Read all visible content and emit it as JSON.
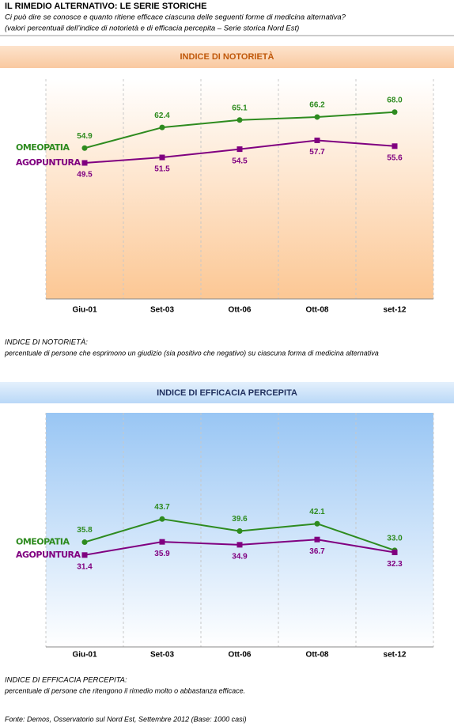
{
  "header": {
    "title": "IL RIMEDIO ALTERNATIVO:  LE SERIE STORICHE",
    "subtitle": "Ci può dire se conosce e quanto ritiene efficace ciascuna delle seguenti forme di medicina alternativa?",
    "subtitle2": "(valori percentuali dell’indice di notorietà e di efficacia percepita – Serie storica Nord Est)"
  },
  "chart_data": [
    {
      "type": "line",
      "title": "INDICE DI NOTORIETÀ",
      "categories": [
        "Giu-01",
        "Set-03",
        "Ott-06",
        "Ott-08",
        "set-12"
      ],
      "ylim": [
        0,
        80
      ],
      "series": [
        {
          "name": "OMEOPATIA",
          "color": "#2e8b1f",
          "values": [
            54.9,
            62.4,
            65.1,
            66.2,
            68.0
          ],
          "value_labels": [
            "54.9",
            "62.4",
            "65.1",
            "66.2",
            "68.0"
          ]
        },
        {
          "name": "AGOPUNTURA",
          "color": "#800080",
          "values": [
            49.5,
            51.5,
            54.5,
            57.7,
            55.6
          ],
          "value_labels": [
            "49.5",
            "51.5",
            "54.5",
            "57.7",
            "55.6"
          ]
        }
      ]
    },
    {
      "type": "line",
      "title": "INDICE DI EFFICACIA  PERCEPITA",
      "categories": [
        "Giu-01",
        "Set-03",
        "Ott-06",
        "Ott-08",
        "set-12"
      ],
      "ylim": [
        0,
        80
      ],
      "series": [
        {
          "name": "OMEOPATIA",
          "color": "#2e8b1f",
          "values": [
            35.8,
            43.7,
            39.6,
            42.1,
            33.0
          ],
          "value_labels": [
            "35.8",
            "43.7",
            "39.6",
            "42.1",
            "33.0"
          ]
        },
        {
          "name": "AGOPUNTURA",
          "color": "#800080",
          "values": [
            31.4,
            35.9,
            34.9,
            36.7,
            32.3
          ],
          "value_labels": [
            "31.4",
            "35.9",
            "34.9",
            "36.7",
            "32.3"
          ]
        }
      ]
    }
  ],
  "notes": [
    {
      "title": "INDICE DI NOTORIETÀ:",
      "text": "percentuale di persone che esprimono un giudizio  (sia positivo che negativo) su ciascuna forma di medicina alternativa"
    },
    {
      "title": "INDICE DI EFFICACIA PERCEPITA:",
      "text": "percentuale di persone che ritengono il rimedio molto o abbastanza efficace."
    }
  ],
  "source": "Fonte: Demos, Osservatorio sul Nord Est, Settembre 2012 (Base: 1000 casi)"
}
